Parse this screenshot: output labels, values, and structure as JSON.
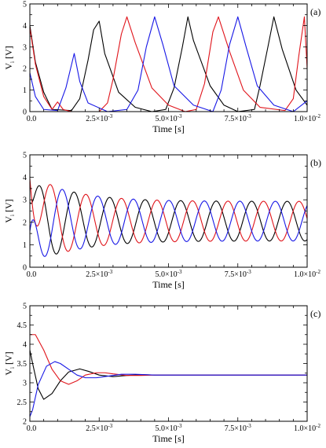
{
  "colors": {
    "black": "#000000",
    "red": "#e0141b",
    "blue": "#1818e6"
  },
  "chart_data": [
    {
      "type": "line",
      "panel_label": "(a)",
      "xlabel": "Time [s]",
      "ylabel_main": "V",
      "ylabel_sub": "i",
      "ylabel_unit": "[V]",
      "xlim": [
        0,
        0.01
      ],
      "ylim": [
        0,
        5
      ],
      "yticks": [
        0,
        1,
        2,
        3,
        4,
        5
      ],
      "ytick_labels": [
        "0",
        "1",
        "2",
        "3",
        "4",
        "5"
      ],
      "xticks": [
        0,
        0.0025,
        0.005,
        0.0075,
        0.01
      ],
      "xtick_labels": [
        {
          "base": "0.0",
          "exp": ""
        },
        {
          "base": "2.5×10",
          "exp": "-3"
        },
        {
          "base": "5.0×10",
          "exp": "-3"
        },
        {
          "base": "7.5×10",
          "exp": "-3"
        },
        {
          "base": "1.0×10",
          "exp": "-2"
        }
      ],
      "series": [
        {
          "color": "black",
          "x": [
            0,
            0.0002,
            0.0005,
            0.0008,
            0.0015,
            0.0018,
            0.0021,
            0.0023,
            0.0025,
            0.0027,
            0.0032,
            0.0038,
            0.0044,
            0.0049,
            0.0052,
            0.0055,
            0.0057,
            0.0059,
            0.0065,
            0.007,
            0.0075,
            0.0081,
            0.0083,
            0.0086,
            0.0088,
            0.0091,
            0.0096,
            0.01
          ],
          "y": [
            4.0,
            2.3,
            0.9,
            0.1,
            0.05,
            0.6,
            2.4,
            3.8,
            4.2,
            2.7,
            0.9,
            0.2,
            0.0,
            0.1,
            1.1,
            3.0,
            4.4,
            3.3,
            1.2,
            0.3,
            0.0,
            0.1,
            1.2,
            3.1,
            4.4,
            2.9,
            1.0,
            0.3
          ]
        },
        {
          "color": "red",
          "x": [
            0,
            0.0002,
            0.0005,
            0.0008,
            0.001,
            0.0012,
            0.0015,
            0.0025,
            0.0028,
            0.003,
            0.0033,
            0.0035,
            0.0038,
            0.0044,
            0.005,
            0.0056,
            0.006,
            0.0063,
            0.0066,
            0.0068,
            0.0072,
            0.0077,
            0.0083,
            0.0092,
            0.0095,
            0.0097,
            0.0099,
            0.01
          ],
          "y": [
            3.9,
            2.2,
            0.7,
            0.1,
            0.45,
            0.1,
            0.0,
            0.0,
            0.4,
            1.5,
            3.6,
            4.4,
            3.2,
            1.1,
            0.3,
            0.0,
            0.1,
            1.3,
            3.7,
            4.4,
            2.8,
            1.0,
            0.2,
            0.05,
            0.6,
            2.6,
            4.4,
            2.0
          ]
        },
        {
          "color": "blue",
          "x": [
            0,
            0.0002,
            0.0005,
            0.001,
            0.0013,
            0.0016,
            0.0018,
            0.0021,
            0.0028,
            0.0035,
            0.0039,
            0.0042,
            0.0045,
            0.0048,
            0.0052,
            0.0059,
            0.0066,
            0.0069,
            0.0072,
            0.0075,
            0.0078,
            0.0082,
            0.0088,
            0.0095,
            0.01
          ],
          "y": [
            1.8,
            0.7,
            0.1,
            0.05,
            1.1,
            2.7,
            1.4,
            0.4,
            0.0,
            0.1,
            1.0,
            3.0,
            4.4,
            3.1,
            1.2,
            0.3,
            0.0,
            1.0,
            3.1,
            4.4,
            3.0,
            1.2,
            0.3,
            0.0,
            0.5
          ]
        }
      ]
    },
    {
      "type": "line",
      "panel_label": "(b)",
      "xlabel": "Time [s]",
      "ylabel_main": "V",
      "ylabel_sub": "i",
      "ylabel_unit": "[V]",
      "xlim": [
        0,
        0.01
      ],
      "ylim": [
        0,
        5
      ],
      "yticks": [
        0,
        1,
        2,
        3,
        4,
        5
      ],
      "ytick_labels": [
        "0",
        "1",
        "2",
        "3",
        "4",
        "5"
      ],
      "xticks": [
        0,
        0.0025,
        0.005,
        0.0075,
        0.01
      ],
      "xtick_labels": [
        {
          "base": "0.0",
          "exp": ""
        },
        {
          "base": "2.5×10",
          "exp": "-3"
        },
        {
          "base": "5.0×10",
          "exp": "-3"
        },
        {
          "base": "7.5×10",
          "exp": "-3"
        },
        {
          "base": "1.0×10",
          "exp": "-2"
        }
      ],
      "oscillation": {
        "mean": 2.05,
        "amplitude": 0.88,
        "period": 0.00128,
        "onset_amplitude": 1.2,
        "decay_time": 0.0015
      },
      "series": [
        {
          "color": "black",
          "phase": 0.0,
          "start_value": 2.9
        },
        {
          "color": "red",
          "phase": 0.333,
          "start_value": 3.95
        },
        {
          "color": "blue",
          "phase": 0.667,
          "start_value": 1.6
        }
      ]
    },
    {
      "type": "line",
      "panel_label": "(c)",
      "xlabel": "Time [s]",
      "ylabel_main": "V",
      "ylabel_sub": "i",
      "ylabel_unit": "[V]",
      "xlim": [
        0,
        0.01
      ],
      "ylim": [
        2,
        5
      ],
      "yticks": [
        2,
        2.5,
        3,
        3.5,
        4,
        4.5,
        5
      ],
      "ytick_labels": [
        "2",
        "2.5",
        "3",
        "3.5",
        "4",
        "4.5",
        "5"
      ],
      "xticks": [
        0,
        0.0025,
        0.005,
        0.0075,
        0.01
      ],
      "xtick_labels": [
        {
          "base": "0.0",
          "exp": ""
        },
        {
          "base": "2.5×10",
          "exp": "-3"
        },
        {
          "base": "5.0×10",
          "exp": "-3"
        },
        {
          "base": "7.5×10",
          "exp": "-3"
        },
        {
          "base": "1.0×10",
          "exp": "-2"
        }
      ],
      "series": [
        {
          "color": "black",
          "x": [
            0,
            0.0001,
            0.0003,
            0.0005,
            0.0008,
            0.0011,
            0.0014,
            0.0018,
            0.0021,
            0.0025,
            0.003,
            0.0035,
            0.004,
            0.0045,
            0.005,
            0.006,
            0.008,
            0.01
          ],
          "y": [
            3.85,
            3.5,
            2.85,
            2.57,
            2.72,
            3.05,
            3.28,
            3.36,
            3.3,
            3.2,
            3.16,
            3.19,
            3.21,
            3.2,
            3.2,
            3.2,
            3.2,
            3.2
          ]
        },
        {
          "color": "red",
          "x": [
            0,
            0.0002,
            0.0005,
            0.0008,
            0.0011,
            0.0014,
            0.0017,
            0.002,
            0.0024,
            0.0027,
            0.003,
            0.0035,
            0.004,
            0.0045,
            0.005,
            0.006,
            0.008,
            0.01
          ],
          "y": [
            4.25,
            4.25,
            3.85,
            3.35,
            3.05,
            2.96,
            3.05,
            3.2,
            3.26,
            3.26,
            3.23,
            3.19,
            3.19,
            3.2,
            3.2,
            3.2,
            3.2,
            3.2
          ]
        },
        {
          "color": "blue",
          "x": [
            0,
            0.0001,
            0.0003,
            0.0006,
            0.0009,
            0.0011,
            0.0014,
            0.0017,
            0.002,
            0.0024,
            0.0028,
            0.0033,
            0.0038,
            0.0045,
            0.005,
            0.006,
            0.008,
            0.01
          ],
          "y": [
            2.12,
            2.3,
            2.95,
            3.43,
            3.55,
            3.5,
            3.35,
            3.2,
            3.13,
            3.13,
            3.17,
            3.22,
            3.22,
            3.2,
            3.2,
            3.2,
            3.2,
            3.2
          ]
        }
      ]
    }
  ]
}
